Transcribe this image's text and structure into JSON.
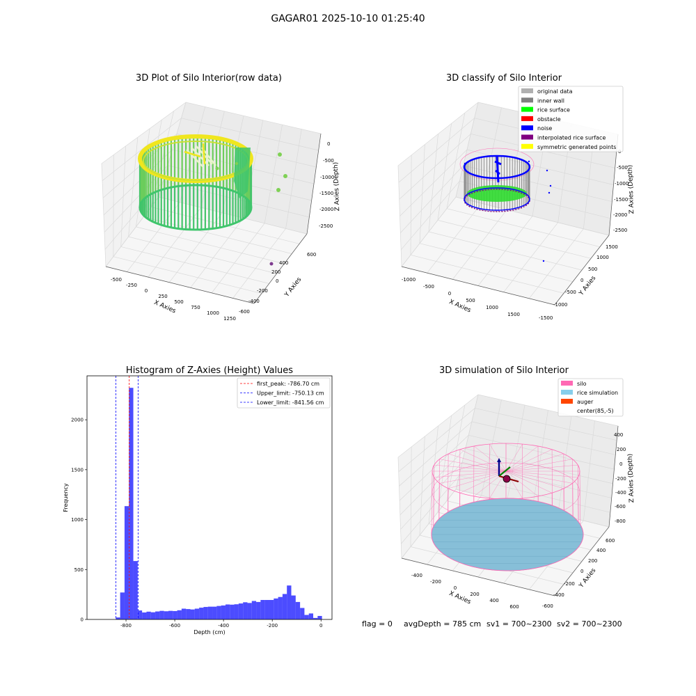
{
  "figure": {
    "suptitle": "GAGAR01 2025-10-10 01:25:40",
    "footer": {
      "flag": "flag = 0",
      "avg": "avgDepth = 785 cm",
      "sv1": "sv1 = 700~2300",
      "sv2": "sv2 = 700~2300"
    }
  },
  "chart_data": [
    {
      "type": "scatter",
      "projection": "3d",
      "title": "3D Plot of Silo Interior(row data)",
      "xlabel": "X Axies",
      "ylabel": "Y Axies",
      "zlabel": "Z Axies (Depth)",
      "xticks": [
        "-500",
        "-250",
        "0",
        "250",
        "500",
        "750",
        "1000",
        "1250"
      ],
      "yticks": [
        "-600",
        "-400",
        "-200",
        "0",
        "200",
        "400",
        "600"
      ],
      "zticks": [
        "0",
        "-500",
        "-1000",
        "-1500",
        "-2000",
        "-2500"
      ],
      "xlim": [
        -600,
        1300
      ],
      "ylim": [
        -650,
        650
      ],
      "zlim": [
        -2800,
        100
      ],
      "colormap": "viridis",
      "colors": {
        "high": "#f0e61e",
        "mid": "#3fc56c",
        "low": "#7e3a8f"
      }
    },
    {
      "type": "scatter",
      "projection": "3d",
      "title": "3D classify of Silo Interior",
      "xlabel": "X Axies",
      "ylabel": "Y Axies",
      "zlabel": "Z Axies (Depth)",
      "xticks": [
        "-1000",
        "-500",
        "0",
        "500",
        "1000",
        "1500"
      ],
      "yticks": [
        "-1500",
        "-1000",
        "-500",
        "0",
        "500",
        "1000",
        "1500"
      ],
      "zticks": [
        "0",
        "-500",
        "-1000",
        "-1500",
        "-2000",
        "-2500"
      ],
      "legend_position": "top-right",
      "legend": [
        {
          "label": "original data",
          "color": "#b0b0b0"
        },
        {
          "label": "inner wall",
          "color": "#808080"
        },
        {
          "label": "rice surface",
          "color": "#00ff00"
        },
        {
          "label": "obstacle",
          "color": "#ff0000"
        },
        {
          "label": "noise",
          "color": "#0000ff"
        },
        {
          "label": "interpolated rice surface",
          "color": "#800080"
        },
        {
          "label": "symmetric generated points",
          "color": "#ffff00"
        }
      ]
    },
    {
      "type": "bar",
      "title": "Histogram of Z-Axies (Height) Values",
      "xlabel": "Depth (cm)",
      "ylabel": "Frequency",
      "xlim": [
        -960,
        45
      ],
      "ylim": [
        0,
        2440
      ],
      "xticks": [
        -800,
        -600,
        -400,
        -200,
        0
      ],
      "yticks": [
        0,
        500,
        1000,
        1500,
        2000
      ],
      "bar_color": "#0000ff",
      "bar_opacity": 0.7,
      "bin_width": 18,
      "bins": [
        {
          "left": -842,
          "count": 20
        },
        {
          "left": -824,
          "count": 270
        },
        {
          "left": -806,
          "count": 1135
        },
        {
          "left": -788,
          "count": 2320
        },
        {
          "left": -770,
          "count": 585
        },
        {
          "left": -752,
          "count": 90
        },
        {
          "left": -734,
          "count": 70
        },
        {
          "left": -716,
          "count": 78
        },
        {
          "left": -698,
          "count": 72
        },
        {
          "left": -680,
          "count": 80
        },
        {
          "left": -662,
          "count": 86
        },
        {
          "left": -644,
          "count": 82
        },
        {
          "left": -626,
          "count": 86
        },
        {
          "left": -608,
          "count": 84
        },
        {
          "left": -590,
          "count": 92
        },
        {
          "left": -572,
          "count": 108
        },
        {
          "left": -554,
          "count": 104
        },
        {
          "left": -536,
          "count": 100
        },
        {
          "left": -518,
          "count": 108
        },
        {
          "left": -500,
          "count": 118
        },
        {
          "left": -482,
          "count": 125
        },
        {
          "left": -464,
          "count": 128
        },
        {
          "left": -446,
          "count": 128
        },
        {
          "left": -428,
          "count": 135
        },
        {
          "left": -410,
          "count": 140
        },
        {
          "left": -392,
          "count": 150
        },
        {
          "left": -374,
          "count": 148
        },
        {
          "left": -356,
          "count": 152
        },
        {
          "left": -338,
          "count": 160
        },
        {
          "left": -320,
          "count": 172
        },
        {
          "left": -302,
          "count": 165
        },
        {
          "left": -284,
          "count": 185
        },
        {
          "left": -266,
          "count": 175
        },
        {
          "left": -248,
          "count": 195
        },
        {
          "left": -230,
          "count": 195
        },
        {
          "left": -212,
          "count": 195
        },
        {
          "left": -194,
          "count": 210
        },
        {
          "left": -176,
          "count": 225
        },
        {
          "left": -158,
          "count": 255
        },
        {
          "left": -140,
          "count": 340
        },
        {
          "left": -122,
          "count": 240
        },
        {
          "left": -104,
          "count": 175
        },
        {
          "left": -86,
          "count": 115
        },
        {
          "left": -68,
          "count": 45
        },
        {
          "left": -50,
          "count": 60
        },
        {
          "left": -32,
          "count": 15
        },
        {
          "left": -14,
          "count": 35
        }
      ],
      "vlines": [
        {
          "x": -786.7,
          "color": "#ff0000",
          "label": "first_peak: -786.70 cm"
        },
        {
          "x": -750.13,
          "color": "#0000ff",
          "label": "Upper_limit: -750.13 cm"
        },
        {
          "x": -841.56,
          "color": "#0000ff",
          "label": "Lower_limit: -841.56 cm"
        }
      ],
      "legend_position": "top-right"
    },
    {
      "type": "surface",
      "projection": "3d",
      "title": "3D simulation of Silo Interior",
      "xlabel": "X Axies",
      "ylabel": "Y Axies",
      "zlabel": "Z Axies (Depth)",
      "xticks": [
        "-400",
        "-200",
        "0",
        "200",
        "400",
        "600"
      ],
      "yticks": [
        "-600",
        "-400",
        "-200",
        "0",
        "200",
        "400",
        "600"
      ],
      "zticks": [
        "400",
        "200",
        "0",
        "-200",
        "-400",
        "-600",
        "-800"
      ],
      "legend_position": "top-right",
      "legend": [
        {
          "label": "silo",
          "color": "#ff69b4"
        },
        {
          "label": "rice simulation",
          "color": "#87ceeb"
        },
        {
          "label": "auger",
          "color": "#ff4500"
        },
        {
          "label": "center(85,-5)",
          "color": "#ffffff"
        }
      ]
    }
  ]
}
